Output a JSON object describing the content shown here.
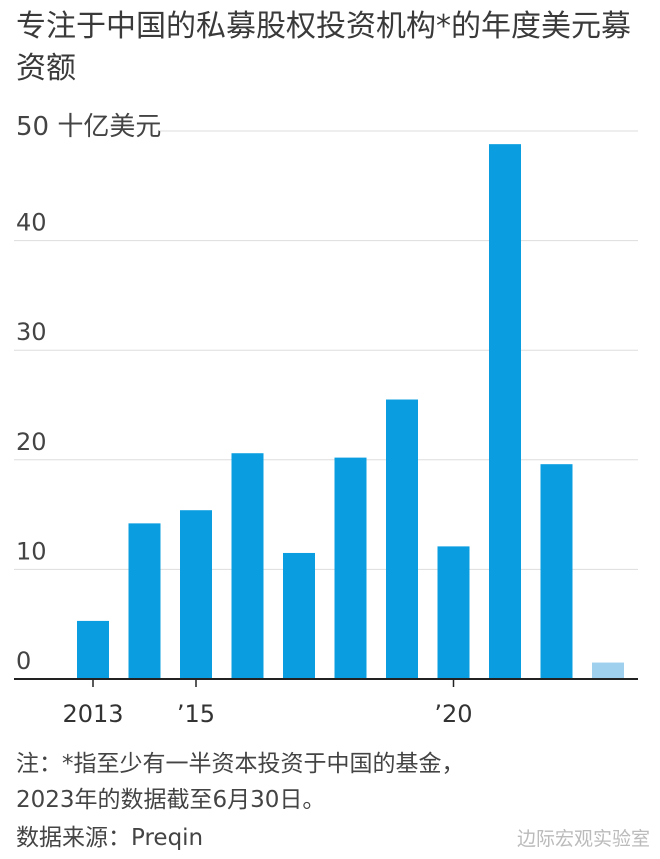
{
  "title": "专注于中国的私募股权投资机构*的年度美元募资额",
  "unit_label": "50 十亿美元",
  "chart_data": {
    "type": "bar",
    "title": "专注于中国的私募股权投资机构*的年度美元募资额",
    "ylabel": "十亿美元",
    "ylim": [
      0,
      50
    ],
    "yticks": [
      0,
      10,
      20,
      30,
      40
    ],
    "categories": [
      "2013",
      "2014",
      "2015",
      "2016",
      "2017",
      "2018",
      "2019",
      "2020",
      "2021",
      "2022",
      "2023"
    ],
    "x_tick_labels": [
      {
        "category": "2013",
        "label": "2013"
      },
      {
        "category": "2015",
        "label": "’15"
      },
      {
        "category": "2020",
        "label": "’20"
      }
    ],
    "values": [
      5.3,
      14.2,
      15.4,
      20.6,
      11.5,
      20.2,
      25.5,
      12.1,
      48.8,
      19.6,
      1.5
    ],
    "partial_year": "2023",
    "grid": true,
    "colors": {
      "bar": "#0a9de0",
      "bar_partial": "#9fd0ee",
      "grid": "#dddddd",
      "axis": "#222222"
    }
  },
  "note": {
    "line1": "注：*指至少有一半资本投资于中国的基金，",
    "line2": "2023年的数据截至6月30日。"
  },
  "source": "数据来源：Preqin",
  "watermark": "边际宏观实验室"
}
